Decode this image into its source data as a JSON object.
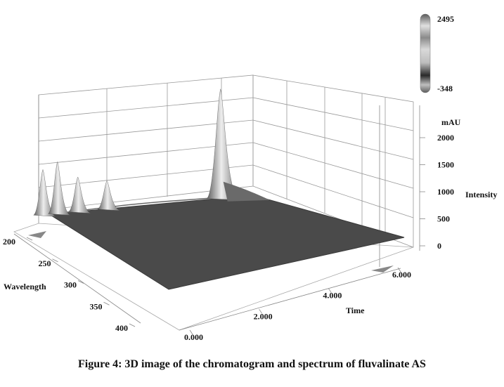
{
  "caption": "Figure 4: 3D image of the chromatogram and spectrum of fluvalinate AS",
  "chart_data": {
    "type": "area",
    "title": "",
    "xlabel": "Time",
    "ylabel": "Wavelength",
    "zlabel": "Intensity",
    "zunit": "mAU",
    "x_ticks": [
      "0.000",
      "2.000",
      "4.000",
      "6.000"
    ],
    "y_ticks": [
      "200",
      "250",
      "300",
      "350",
      "400"
    ],
    "z_ticks": [
      "0",
      "500",
      "1000",
      "1500",
      "2000"
    ],
    "xlim": [
      0,
      6.5
    ],
    "ylim": [
      200,
      420
    ],
    "zlim": [
      0,
      2495
    ],
    "colorbar": {
      "max_label": "2495",
      "min_label": "-348"
    },
    "grid": true,
    "colors": {
      "surface": "#4a4a4a",
      "surface_edge": "#3a3a3a",
      "peak_highlight": "#e6e6e6"
    },
    "peaks": [
      {
        "time": 0.35,
        "wavelength": 212,
        "intensity": 1000
      },
      {
        "time": 0.6,
        "wavelength": 205,
        "intensity": 1150
      },
      {
        "time": 0.95,
        "wavelength": 208,
        "intensity": 750
      },
      {
        "time": 1.45,
        "wavelength": 210,
        "intensity": 600
      },
      {
        "time": 3.4,
        "wavelength": 203,
        "intensity": 2495
      }
    ]
  }
}
